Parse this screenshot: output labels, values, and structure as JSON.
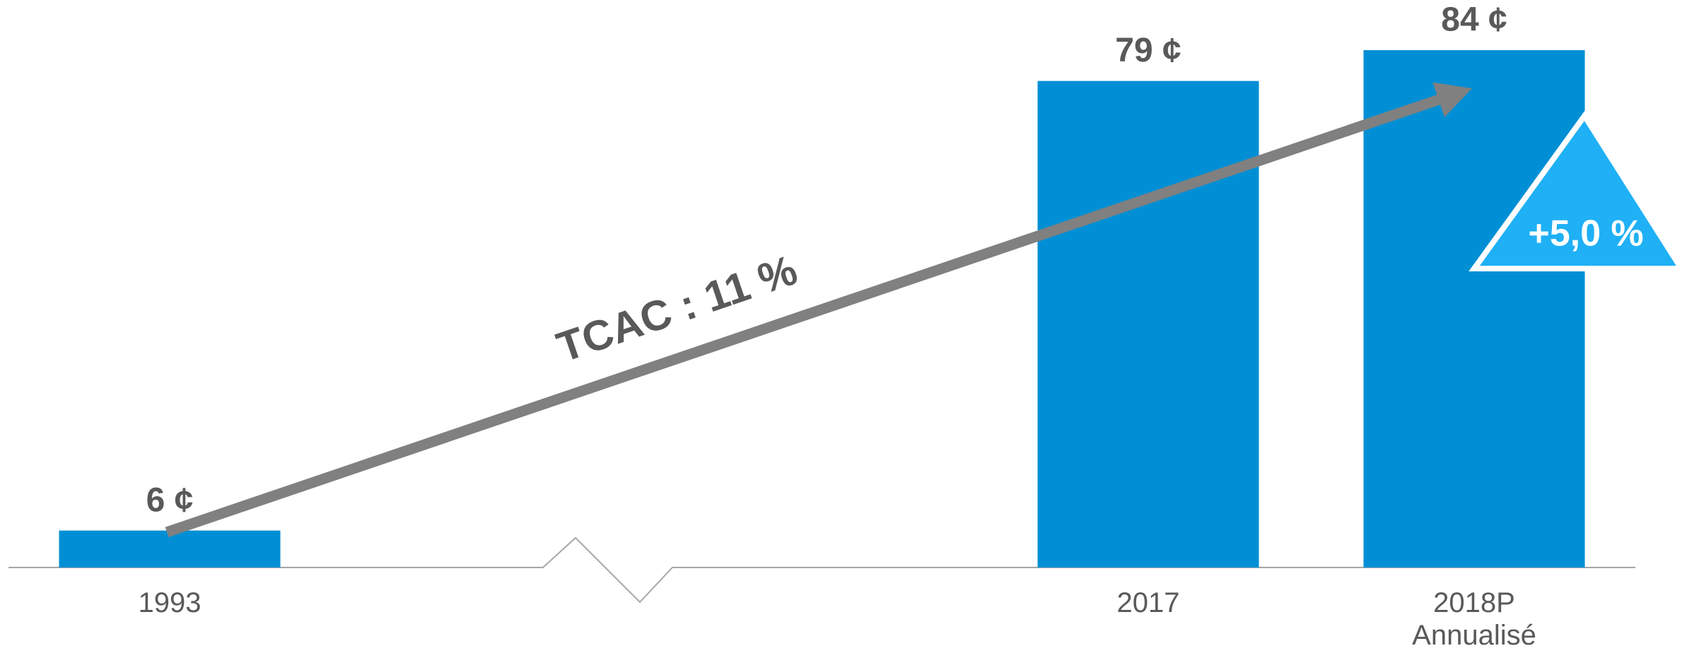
{
  "chart_data": {
    "type": "bar",
    "categories": [
      "1993",
      "2017",
      "2018P Annualisé"
    ],
    "values": [
      6,
      79,
      84
    ],
    "value_labels": [
      "6 ¢",
      "79 ¢",
      "84 ¢"
    ],
    "color": "#008fd5",
    "annotations": [
      "TCAC : 11 %",
      "+5,0 %"
    ]
  }
}
